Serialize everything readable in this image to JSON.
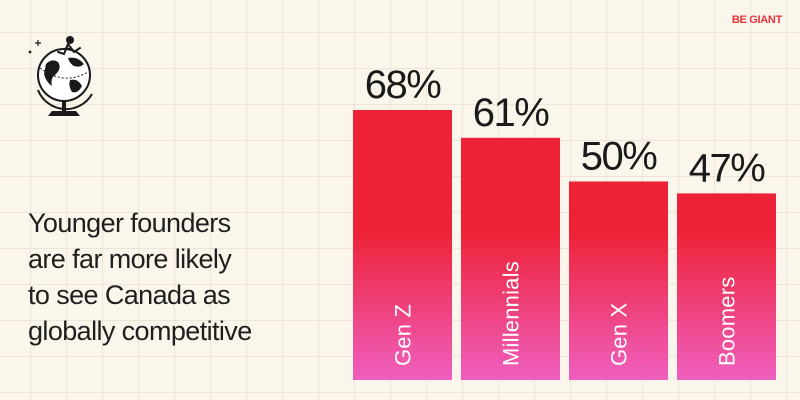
{
  "brand": "BE GIANT",
  "headline": [
    "Younger founders",
    "are far more likely",
    "to see Canada as",
    "globally competitive"
  ],
  "icon": "globe-with-figure-icon",
  "colors": {
    "background": "#fbf6ec",
    "bar_top": "#ee2236",
    "bar_bottom": "#ef5fbf",
    "brand": "#e8303a"
  },
  "chart_data": {
    "type": "bar",
    "categories": [
      "Gen Z",
      "Millennials",
      "Gen X",
      "Boomers"
    ],
    "values": [
      68,
      61,
      50,
      47
    ],
    "value_labels": [
      "68%",
      "61%",
      "50%",
      "47%"
    ],
    "ylim": [
      0,
      100
    ],
    "grid": false,
    "legend": "none"
  }
}
